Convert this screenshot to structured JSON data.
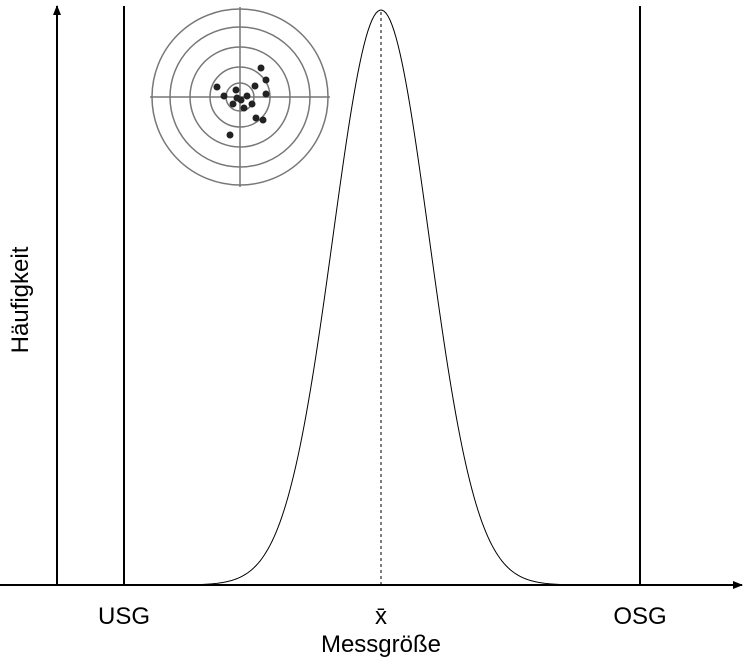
{
  "axes": {
    "y_label": "Häufigkeit",
    "x_label": "Messgröße"
  },
  "markers": {
    "lower_limit": "USG",
    "mean": "x̄",
    "upper_limit": "OSG"
  }
}
